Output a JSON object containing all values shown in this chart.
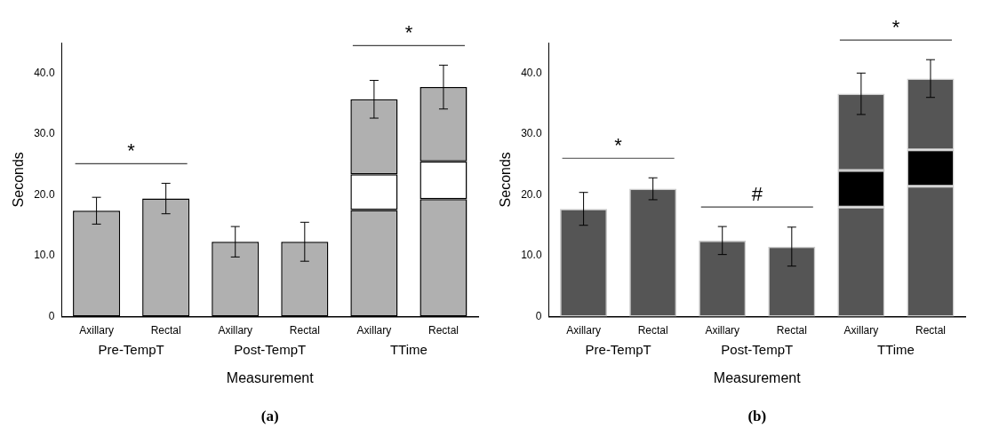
{
  "chart_data": [
    {
      "type": "bar",
      "title": "(a)",
      "xlabel": "Measurement",
      "ylabel": "Seconds",
      "categories": [
        "Axillary",
        "Rectal",
        "Axillary",
        "Rectal",
        "Axillary",
        "Rectal"
      ],
      "stacked": true,
      "ylim": [
        0,
        45
      ],
      "yticks": [
        {
          "value": 0,
          "label": "0"
        },
        {
          "value": 10,
          "label": "10.0"
        },
        {
          "value": 20,
          "label": "20.0"
        },
        {
          "value": 30,
          "label": "30.0"
        },
        {
          "value": 40,
          "label": "40.0"
        }
      ],
      "grid": false,
      "legend": false,
      "series": [
        {
          "color": "#b0b0b0",
          "values": [
            17.4,
            19.4,
            12.3,
            12.3,
            17.5,
            19.3
          ],
          "errors": [
            2.2,
            2.5,
            2.5,
            3.2,
            null,
            null
          ]
        },
        {
          "color": "#ffffff",
          "values": [
            null,
            null,
            null,
            null,
            5.9,
            6.2
          ]
        },
        {
          "color": "#b0b0b0",
          "values": [
            null,
            null,
            null,
            null,
            12.3,
            12.2
          ],
          "errors": [
            null,
            null,
            null,
            null,
            3.1,
            3.6
          ]
        }
      ],
      "annotations": [
        "Pre-TempT",
        "Post-TempT",
        "TTime",
        "*",
        "*"
      ]
    },
    {
      "type": "bar",
      "title": "(b)",
      "xlabel": "Measurement",
      "ylabel": "Seconds",
      "categories": [
        "Axillary",
        "Rectal",
        "Axillary",
        "Rectal",
        "Axillary",
        "Rectal"
      ],
      "stacked": true,
      "ylim": [
        0,
        45
      ],
      "yticks": [
        {
          "value": 0,
          "label": "0"
        },
        {
          "value": 10,
          "label": "10.0"
        },
        {
          "value": 20,
          "label": "20.0"
        },
        {
          "value": 30,
          "label": "30.0"
        },
        {
          "value": 40,
          "label": "40.0"
        }
      ],
      "grid": false,
      "legend": false,
      "series": [
        {
          "color": "#555555",
          "values": [
            17.7,
            21.0,
            12.5,
            11.5,
            18.0,
            21.4
          ],
          "errors": [
            2.7,
            1.8,
            2.3,
            3.2,
            null,
            null
          ]
        },
        {
          "color": "#000000",
          "values": [
            null,
            null,
            null,
            null,
            6.0,
            6.0
          ]
        },
        {
          "color": "#555555",
          "values": [
            null,
            null,
            null,
            null,
            12.6,
            11.7
          ],
          "errors": [
            null,
            null,
            null,
            null,
            3.4,
            3.1
          ]
        }
      ],
      "annotations": [
        "Pre-TempT",
        "Post-TempT",
        "TTime",
        "*",
        "#",
        "*"
      ]
    }
  ]
}
